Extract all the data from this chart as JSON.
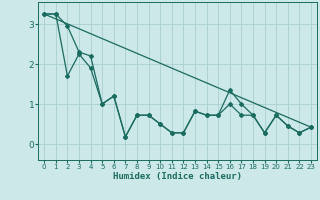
{
  "xlabel": "Humidex (Indice chaleur)",
  "ylabel": "",
  "background_color": "#cce8e8",
  "grid_color": "#aad0d0",
  "line_color": "#1a6b60",
  "xlim": [
    -0.5,
    23.5
  ],
  "ylim": [
    -0.4,
    3.55
  ],
  "yticks": [
    0,
    1,
    2,
    3
  ],
  "xticks": [
    0,
    1,
    2,
    3,
    4,
    5,
    6,
    7,
    8,
    9,
    10,
    11,
    12,
    13,
    14,
    15,
    16,
    17,
    18,
    19,
    20,
    21,
    22,
    23
  ],
  "line1_x": [
    0,
    1,
    2,
    3,
    4,
    5,
    6,
    7,
    8,
    9,
    10,
    11,
    12,
    13,
    14,
    15,
    16,
    17,
    18,
    19,
    20,
    21,
    22,
    23
  ],
  "line1_y": [
    3.25,
    3.25,
    2.95,
    2.3,
    2.2,
    1.0,
    1.2,
    0.18,
    0.72,
    0.72,
    0.5,
    0.28,
    0.28,
    0.82,
    0.72,
    0.72,
    1.35,
    1.0,
    0.72,
    0.28,
    0.72,
    0.45,
    0.28,
    0.42
  ],
  "line2_x": [
    0,
    1,
    2,
    3,
    4,
    5,
    6,
    7,
    8,
    9,
    10,
    11,
    12,
    13,
    14,
    15,
    16,
    17,
    18,
    19,
    20,
    21,
    22,
    23
  ],
  "line2_y": [
    3.25,
    3.25,
    1.7,
    2.25,
    1.9,
    1.0,
    1.2,
    0.18,
    0.72,
    0.72,
    0.5,
    0.28,
    0.28,
    0.82,
    0.72,
    0.72,
    1.0,
    0.72,
    0.72,
    0.28,
    0.72,
    0.45,
    0.28,
    0.42
  ],
  "line3_x": [
    0,
    23
  ],
  "line3_y": [
    3.25,
    0.42
  ]
}
